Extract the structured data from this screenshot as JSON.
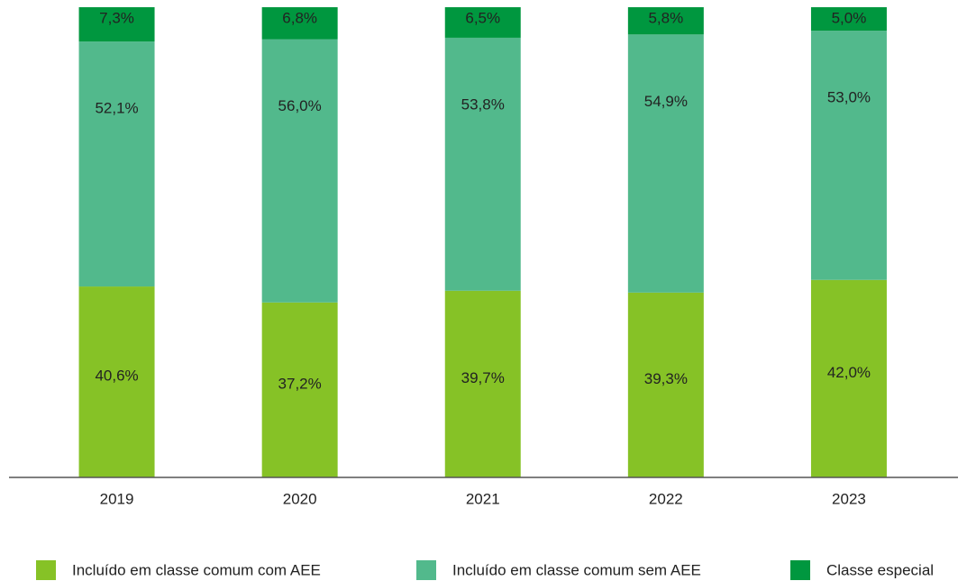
{
  "chart_data": {
    "type": "stacked_bar",
    "categories": [
      "2019",
      "2020",
      "2021",
      "2022",
      "2023"
    ],
    "ylim": [
      0,
      100
    ],
    "series": [
      {
        "name": "Incluído em classe comum com AEE",
        "color": "#86c226",
        "values": [
          40.6,
          37.2,
          39.7,
          39.3,
          42.0
        ],
        "value_labels": [
          "40,6%",
          "37,2%",
          "39,7%",
          "39,3%",
          "42,0%"
        ]
      },
      {
        "name": "Incluído em classe comum sem AEE",
        "color": "#52b98c",
        "values": [
          52.1,
          56.0,
          53.8,
          54.9,
          53.0
        ],
        "value_labels": [
          "52,1%",
          "56,0%",
          "53,8%",
          "54,9%",
          "53,0%"
        ]
      },
      {
        "name": "Classe especial",
        "color": "#00973f",
        "values": [
          7.3,
          6.8,
          6.5,
          5.8,
          5.0
        ],
        "value_labels": [
          "7,3%",
          "6,8%",
          "6,5%",
          "5,8%",
          "5,0%"
        ]
      }
    ]
  }
}
